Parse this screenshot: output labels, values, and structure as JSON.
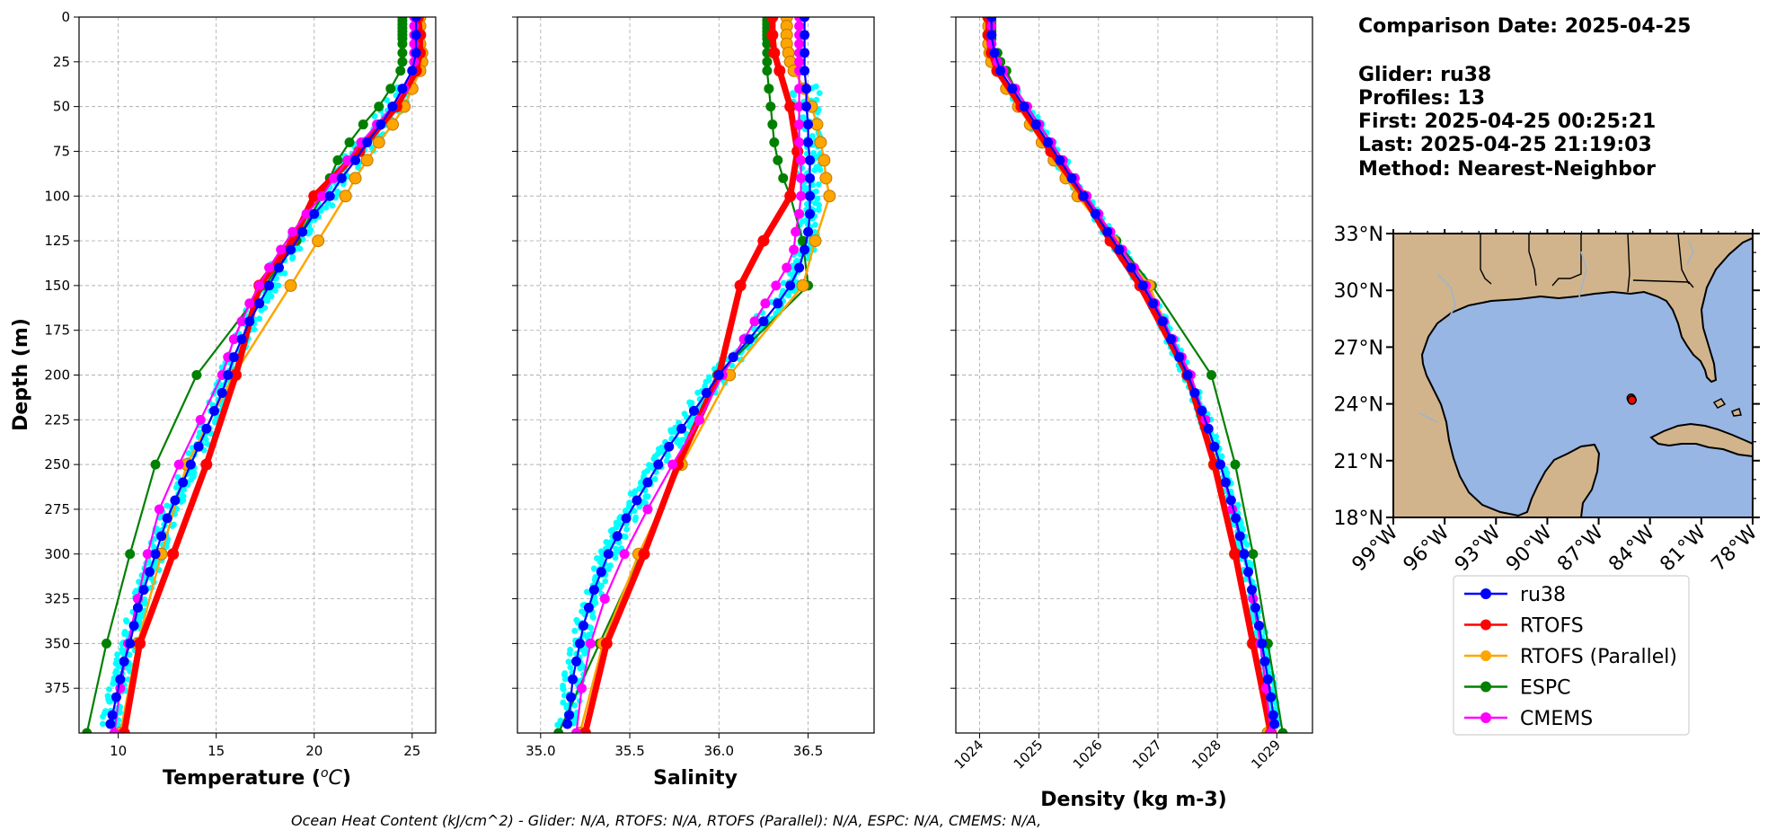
{
  "info": {
    "comparison_date": "Comparison Date: 2025-04-25",
    "glider": "Glider: ru38",
    "profiles": "Profiles: 13",
    "first": "First: 2025-04-25 00:25:21",
    "last": "Last: 2025-04-25 21:19:03",
    "method": "Method: Nearest-Neighbor"
  },
  "footer": "Ocean Heat Content (kJ/cm^2) - Glider: N/A,  RTOFS: N/A,  RTOFS (Parallel): N/A,  ESPC: N/A,  CMEMS: N/A,",
  "colors": {
    "ru38": "#0000ff",
    "RTOFS": "#ff0000",
    "RTOFS (Parallel)": "#ffa500",
    "ESPC": "#008000",
    "CMEMS": "#ff00ff",
    "glider_points": "#00ffff",
    "land": "#d2b48c",
    "ocean": "#98b6e3"
  },
  "chart_data": [
    {
      "type": "line",
      "id": "temperature",
      "xlabel": "Temperature ($^oC$)",
      "ylabel": "Depth (m)",
      "xlim": [
        8,
        26.2
      ],
      "ylim": [
        400,
        0
      ],
      "xticks": [
        10,
        15,
        20,
        25
      ],
      "yticks": [
        0,
        25,
        50,
        75,
        100,
        125,
        150,
        175,
        200,
        225,
        250,
        275,
        300,
        325,
        350,
        375
      ],
      "grid": true,
      "glider_scatter": {
        "name": "ru38 profiles",
        "color": "#00ffff"
      },
      "series": [
        {
          "name": "ESPC",
          "depth": [
            0,
            2,
            4,
            6,
            8,
            10,
            12,
            15,
            20,
            25,
            30,
            40,
            50,
            60,
            70,
            80,
            90,
            100,
            125,
            150,
            200,
            250,
            300,
            350,
            400
          ],
          "values": [
            24.5,
            24.5,
            24.5,
            24.5,
            24.5,
            24.5,
            24.5,
            24.5,
            24.5,
            24.5,
            24.4,
            23.9,
            23.3,
            22.5,
            21.8,
            21.2,
            20.8,
            20.4,
            19.1,
            17.5,
            14.0,
            11.9,
            10.6,
            9.4,
            8.4
          ]
        },
        {
          "name": "RTOFS (Parallel)",
          "depth": [
            0,
            5,
            10,
            15,
            20,
            25,
            30,
            40,
            50,
            60,
            70,
            80,
            90,
            100,
            125,
            150,
            200,
            250,
            300,
            350,
            400
          ],
          "values": [
            25.4,
            25.4,
            25.4,
            25.4,
            25.5,
            25.5,
            25.4,
            25.0,
            24.6,
            24.0,
            23.3,
            22.7,
            22.1,
            21.6,
            20.2,
            18.8,
            15.9,
            13.5,
            12.2,
            11.0,
            10.1
          ]
        },
        {
          "name": "RTOFS",
          "depth": [
            0,
            10,
            20,
            30,
            50,
            75,
            100,
            125,
            150,
            200,
            250,
            300,
            350,
            400
          ],
          "values": [
            25.3,
            25.4,
            25.4,
            25.2,
            24.2,
            22.3,
            20.0,
            18.9,
            17.2,
            16.0,
            14.5,
            12.8,
            11.1,
            10.3
          ]
        },
        {
          "name": "CMEMS",
          "depth": [
            0,
            5,
            10,
            15,
            20,
            25,
            30,
            40,
            50,
            60,
            70,
            80,
            90,
            100,
            110,
            120,
            130,
            140,
            150,
            160,
            170,
            180,
            190,
            200,
            225,
            250,
            275,
            300,
            325,
            350,
            375,
            400
          ],
          "values": [
            25.1,
            25.1,
            25.1,
            25.1,
            25.1,
            25.1,
            25.0,
            24.6,
            24.0,
            23.2,
            22.4,
            21.7,
            21.0,
            20.4,
            19.6,
            18.9,
            18.3,
            17.7,
            17.2,
            16.7,
            16.3,
            15.9,
            15.6,
            15.3,
            14.2,
            13.1,
            12.1,
            11.5,
            11.0,
            10.5,
            10.1,
            9.8
          ]
        },
        {
          "name": "ru38",
          "depth": [
            0,
            10,
            20,
            30,
            40,
            50,
            60,
            70,
            80,
            90,
            100,
            110,
            120,
            130,
            140,
            150,
            160,
            170,
            180,
            190,
            200,
            210,
            220,
            230,
            240,
            250,
            260,
            270,
            280,
            290,
            300,
            310,
            320,
            330,
            340,
            350,
            360,
            370,
            380,
            390,
            395
          ],
          "values": [
            25.2,
            25.2,
            25.2,
            25.0,
            24.5,
            24.0,
            23.4,
            22.7,
            22.1,
            21.4,
            20.8,
            20.0,
            19.4,
            18.8,
            18.2,
            17.7,
            17.2,
            16.7,
            16.3,
            15.9,
            15.6,
            15.3,
            14.9,
            14.5,
            14.1,
            13.7,
            13.3,
            12.9,
            12.5,
            12.2,
            11.9,
            11.6,
            11.3,
            11.0,
            10.8,
            10.6,
            10.3,
            10.1,
            9.9,
            9.7,
            9.6
          ]
        }
      ]
    },
    {
      "type": "line",
      "id": "salinity",
      "xlabel": "Salinity",
      "ylabel": "",
      "xlim": [
        34.87,
        36.87
      ],
      "ylim": [
        400,
        0
      ],
      "xticks": [
        35.0,
        35.5,
        36.0,
        36.5
      ],
      "xtick_labels": [
        "35.0",
        "35.5",
        "36.0",
        "36.5"
      ],
      "yticks": [
        0,
        25,
        50,
        75,
        100,
        125,
        150,
        175,
        200,
        225,
        250,
        275,
        300,
        325,
        350,
        375
      ],
      "grid": true,
      "glider_scatter": {
        "name": "ru38 profiles",
        "color": "#00ffff"
      },
      "series": [
        {
          "name": "ESPC",
          "depth": [
            0,
            2,
            4,
            6,
            8,
            10,
            12,
            15,
            20,
            25,
            30,
            40,
            50,
            60,
            70,
            80,
            90,
            100,
            125,
            150,
            200,
            250,
            300,
            350,
            400
          ],
          "values": [
            36.27,
            36.27,
            36.27,
            36.27,
            36.27,
            36.27,
            36.27,
            36.27,
            36.27,
            36.27,
            36.27,
            36.28,
            36.29,
            36.3,
            36.31,
            36.33,
            36.36,
            36.4,
            36.47,
            36.5,
            35.99,
            35.77,
            35.56,
            35.33,
            35.1
          ]
        },
        {
          "name": "RTOFS (Parallel)",
          "depth": [
            0,
            5,
            10,
            15,
            20,
            25,
            30,
            40,
            50,
            60,
            70,
            80,
            90,
            100,
            125,
            150,
            200,
            250,
            300,
            350,
            400
          ],
          "values": [
            36.38,
            36.38,
            36.38,
            36.38,
            36.39,
            36.4,
            36.42,
            36.48,
            36.52,
            36.55,
            36.57,
            36.59,
            36.6,
            36.62,
            36.54,
            36.47,
            36.06,
            35.79,
            35.55,
            35.35,
            35.22
          ]
        },
        {
          "name": "RTOFS",
          "depth": [
            0,
            10,
            20,
            30,
            50,
            75,
            100,
            125,
            150,
            200,
            250,
            300,
            350,
            400
          ],
          "values": [
            36.3,
            36.3,
            36.31,
            36.34,
            36.4,
            36.44,
            36.4,
            36.25,
            36.12,
            36.0,
            35.77,
            35.58,
            35.37,
            35.25
          ]
        },
        {
          "name": "CMEMS",
          "depth": [
            0,
            5,
            10,
            15,
            20,
            25,
            30,
            40,
            50,
            60,
            70,
            80,
            90,
            100,
            110,
            120,
            130,
            140,
            150,
            160,
            170,
            180,
            190,
            200,
            225,
            250,
            275,
            300,
            325,
            350,
            375,
            400
          ],
          "values": [
            36.45,
            36.45,
            36.45,
            36.45,
            36.45,
            36.45,
            36.45,
            36.45,
            36.45,
            36.45,
            36.45,
            36.46,
            36.46,
            36.46,
            36.45,
            36.43,
            36.42,
            36.38,
            36.32,
            36.26,
            36.2,
            36.14,
            36.08,
            36.02,
            35.89,
            35.74,
            35.6,
            35.47,
            35.36,
            35.28,
            35.23,
            35.2
          ]
        },
        {
          "name": "ru38",
          "depth": [
            0,
            10,
            20,
            30,
            40,
            50,
            60,
            70,
            80,
            90,
            100,
            110,
            120,
            130,
            140,
            150,
            160,
            170,
            180,
            190,
            200,
            210,
            220,
            230,
            240,
            250,
            260,
            270,
            280,
            290,
            300,
            310,
            320,
            330,
            340,
            350,
            360,
            370,
            380,
            390,
            395
          ],
          "values": [
            36.48,
            36.48,
            36.48,
            36.48,
            36.49,
            36.49,
            36.5,
            36.5,
            36.51,
            36.51,
            36.51,
            36.51,
            36.5,
            36.48,
            36.45,
            36.4,
            36.33,
            36.25,
            36.17,
            36.08,
            36.0,
            35.93,
            35.86,
            35.79,
            35.72,
            35.66,
            35.6,
            35.54,
            35.48,
            35.43,
            35.38,
            35.34,
            35.3,
            35.27,
            35.24,
            35.22,
            35.2,
            35.18,
            35.17,
            35.16,
            35.15
          ]
        }
      ]
    },
    {
      "type": "line",
      "id": "density",
      "xlabel": "Density (kg m-3)",
      "ylabel": "",
      "xlim": [
        1023.6,
        1029.6
      ],
      "ylim": [
        400,
        0
      ],
      "xticks": [
        1024,
        1025,
        1026,
        1027,
        1028,
        1029
      ],
      "yticks": [
        0,
        25,
        50,
        75,
        100,
        125,
        150,
        175,
        200,
        225,
        250,
        275,
        300,
        325,
        350,
        375
      ],
      "grid": true,
      "glider_scatter": {
        "name": "ru38 profiles",
        "color": "#00ffff"
      },
      "series": [
        {
          "name": "ESPC",
          "depth": [
            0,
            2,
            4,
            6,
            8,
            10,
            12,
            15,
            20,
            25,
            30,
            40,
            50,
            60,
            70,
            80,
            90,
            100,
            125,
            150,
            200,
            250,
            300,
            350,
            400
          ],
          "values": [
            1024.2,
            1024.2,
            1024.2,
            1024.2,
            1024.2,
            1024.2,
            1024.2,
            1024.2,
            1024.3,
            1024.35,
            1024.45,
            1024.6,
            1024.8,
            1025.0,
            1025.2,
            1025.4,
            1025.6,
            1025.8,
            1026.3,
            1026.9,
            1027.9,
            1028.3,
            1028.6,
            1028.85,
            1029.1
          ]
        },
        {
          "name": "RTOFS (Parallel)",
          "depth": [
            0,
            5,
            10,
            15,
            20,
            25,
            30,
            40,
            50,
            60,
            70,
            80,
            90,
            100,
            125,
            150,
            200,
            250,
            300,
            350,
            400
          ],
          "values": [
            1024.15,
            1024.15,
            1024.15,
            1024.15,
            1024.17,
            1024.2,
            1024.3,
            1024.45,
            1024.65,
            1024.85,
            1025.05,
            1025.25,
            1025.45,
            1025.65,
            1026.25,
            1026.85,
            1027.5,
            1027.95,
            1028.3,
            1028.6,
            1028.85
          ]
        },
        {
          "name": "RTOFS",
          "depth": [
            0,
            10,
            20,
            30,
            50,
            75,
            100,
            125,
            150,
            200,
            250,
            300,
            350,
            400
          ],
          "values": [
            1024.15,
            1024.15,
            1024.2,
            1024.3,
            1024.7,
            1025.2,
            1025.75,
            1026.2,
            1026.7,
            1027.5,
            1027.95,
            1028.3,
            1028.6,
            1028.9
          ]
        },
        {
          "name": "CMEMS",
          "depth": [
            0,
            5,
            10,
            15,
            20,
            25,
            30,
            40,
            50,
            60,
            70,
            80,
            90,
            100,
            110,
            120,
            130,
            140,
            150,
            160,
            170,
            180,
            190,
            200,
            225,
            250,
            275,
            300,
            325,
            350,
            375,
            400
          ],
          "values": [
            1024.2,
            1024.2,
            1024.2,
            1024.2,
            1024.25,
            1024.3,
            1024.4,
            1024.6,
            1024.8,
            1025.0,
            1025.2,
            1025.4,
            1025.6,
            1025.8,
            1026.0,
            1026.2,
            1026.4,
            1026.6,
            1026.8,
            1026.95,
            1027.1,
            1027.25,
            1027.4,
            1027.55,
            1027.8,
            1028.05,
            1028.25,
            1028.45,
            1028.6,
            1028.72,
            1028.82,
            1028.9
          ]
        },
        {
          "name": "ru38",
          "depth": [
            0,
            10,
            20,
            30,
            40,
            50,
            60,
            70,
            80,
            90,
            100,
            110,
            120,
            130,
            140,
            150,
            160,
            170,
            180,
            190,
            200,
            210,
            220,
            230,
            240,
            250,
            260,
            270,
            280,
            290,
            300,
            310,
            320,
            330,
            340,
            350,
            360,
            370,
            380,
            390,
            395
          ],
          "values": [
            1024.2,
            1024.2,
            1024.25,
            1024.35,
            1024.55,
            1024.75,
            1024.95,
            1025.15,
            1025.35,
            1025.55,
            1025.75,
            1025.95,
            1026.15,
            1026.35,
            1026.55,
            1026.75,
            1026.92,
            1027.08,
            1027.22,
            1027.36,
            1027.5,
            1027.62,
            1027.74,
            1027.85,
            1027.95,
            1028.05,
            1028.14,
            1028.23,
            1028.31,
            1028.38,
            1028.45,
            1028.52,
            1028.58,
            1028.64,
            1028.7,
            1028.75,
            1028.8,
            1028.85,
            1028.9,
            1028.94,
            1028.96
          ]
        }
      ]
    },
    {
      "type": "map",
      "id": "location_map",
      "xlim": [
        -99,
        -78
      ],
      "ylim": [
        18,
        33
      ],
      "xticks": [
        -99,
        -96,
        -93,
        -90,
        -87,
        -84,
        -81,
        -78
      ],
      "xtick_labels": [
        "99°W",
        "96°W",
        "93°W",
        "90°W",
        "87°W",
        "84°W",
        "81°W",
        "78°W"
      ],
      "yticks": [
        18,
        21,
        24,
        27,
        30,
        33
      ],
      "ytick_labels": [
        "18°N",
        "21°N",
        "24°N",
        "27°N",
        "30°N",
        "33°N"
      ],
      "glider_positions": [
        [
          -85.1,
          24.3
        ],
        [
          -85.05,
          24.2
        ]
      ],
      "legend": [
        "ru38",
        "RTOFS",
        "RTOFS (Parallel)",
        "ESPC",
        "CMEMS"
      ],
      "legend_colors": [
        "#0000ff",
        "#ff0000",
        "#ffa500",
        "#008000",
        "#ff00ff"
      ]
    }
  ]
}
